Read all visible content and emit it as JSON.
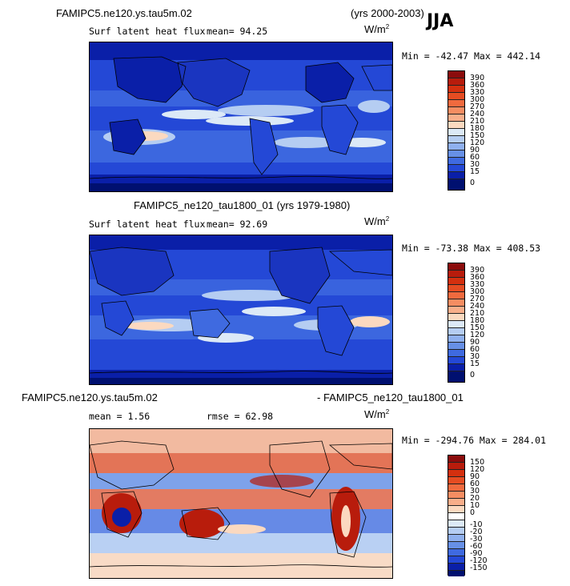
{
  "header": {
    "run_title": "FAMIPC5.ne120.ys.tau5m.02",
    "years": "(yrs 2000-2003)",
    "season": "JJA"
  },
  "panels": [
    {
      "variable": "Surf latent heat flux",
      "stat_text": "mean=  94.25",
      "unit_base": "W/m",
      "unit_exp": "2",
      "minmax": "Min = -42.47  Max = 442.14",
      "subtitle": "",
      "colorbar_labels": [
        "390",
        "360",
        "330",
        "300",
        "270",
        "240",
        "210",
        "180",
        "150",
        "120",
        "90",
        "60",
        "30",
        "15",
        "0"
      ]
    },
    {
      "variable": "Surf latent heat flux",
      "stat_text": "mean=  92.69",
      "unit_base": "W/m",
      "unit_exp": "2",
      "minmax": "Min = -73.38  Max = 408.53",
      "subtitle": "FAMIPC5_ne120_tau1800_01 (yrs 1979-1980)",
      "colorbar_labels": [
        "390",
        "360",
        "330",
        "300",
        "270",
        "240",
        "210",
        "180",
        "150",
        "120",
        "90",
        "60",
        "30",
        "15",
        "0"
      ]
    },
    {
      "variable": "",
      "stat_text": "mean =   1.56",
      "rmse_text": "rmse =  62.98",
      "unit_base": "W/m",
      "unit_exp": "2",
      "minmax": "Min = -294.76  Max = 284.01",
      "diff_left": "FAMIPC5.ne120.ys.tau5m.02",
      "diff_right": "- FAMIPC5_ne120_tau1800_01",
      "colorbar_labels": [
        "150",
        "120",
        "90",
        "60",
        "30",
        "20",
        "10",
        "0",
        "-10",
        "-20",
        "-30",
        "-60",
        "-90",
        "-120",
        "-150"
      ]
    }
  ],
  "colors": {
    "flux_scale": [
      "#8b0c0c",
      "#b81c0c",
      "#d4300f",
      "#e64c22",
      "#f06a3e",
      "#f58d62",
      "#f8ae8a",
      "#fbd9c0",
      "#dce9f7",
      "#b5cdf2",
      "#8fb0ee",
      "#6790e6",
      "#3f6ae0",
      "#2448d6",
      "#0a1fa8",
      "#001070"
    ],
    "diff_scale": [
      "#8b0c0c",
      "#b81c0c",
      "#d4300f",
      "#e64c22",
      "#f06a3e",
      "#f58d62",
      "#f8ae8a",
      "#fbd9c0",
      "#ffffff",
      "#dce9f7",
      "#b5cdf2",
      "#8fb0ee",
      "#6790e6",
      "#3f6ae0",
      "#2448d6",
      "#0a1fa8",
      "#001070"
    ]
  }
}
